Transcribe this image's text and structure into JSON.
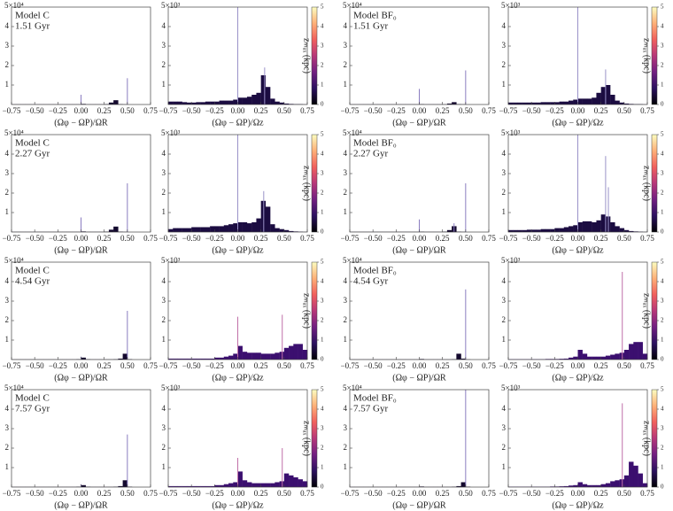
{
  "shared": {
    "bins": [
      -0.75,
      -0.7,
      -0.65,
      -0.6,
      -0.55,
      -0.5,
      -0.45,
      -0.4,
      -0.35,
      -0.3,
      -0.25,
      -0.2,
      -0.15,
      -0.1,
      -0.05,
      0,
      0.05,
      0.1,
      0.15,
      0.2,
      0.25,
      0.3,
      0.35,
      0.4,
      0.45,
      0.5,
      0.55,
      0.6,
      0.65,
      0.7,
      0.75
    ],
    "xlim": [
      -0.75,
      0.75
    ],
    "xticks": [
      {
        "value": -0.75,
        "label": "−0.75"
      },
      {
        "value": -0.5,
        "label": "−0.50"
      },
      {
        "value": -0.25,
        "label": "−0.25"
      },
      {
        "value": 0,
        "label": "0.00"
      },
      {
        "value": 0.25,
        "label": "0.25"
      },
      {
        "value": 0.5,
        "label": "0.50"
      },
      {
        "value": 0.75,
        "label": "0.75"
      }
    ],
    "ylim": [
      0,
      5
    ],
    "yticks": [
      1,
      2,
      3,
      4
    ],
    "colorbar": {
      "label": "zₘₐₓ (kpc)",
      "lim": [
        0,
        5
      ],
      "ticks": [
        0,
        1,
        2,
        3,
        4,
        5
      ],
      "colors": [
        "#000004",
        "#2c115f",
        "#721f81",
        "#b73779",
        "#f1605d",
        "#feb078",
        "#fcfdbf"
      ]
    }
  },
  "chart_data": [
    {
      "type": "histogram",
      "title": "Model C",
      "subtitle": "1.51 Gyr",
      "offset_label": "5×10⁴",
      "xlabel": "(Ωφ − ΩP)/ΩR",
      "color": "#14092e",
      "colorbar": false,
      "values": [
        0.01,
        0.01,
        0.01,
        0.01,
        0.01,
        0.01,
        0.01,
        0.01,
        0.01,
        0.01,
        0.01,
        0.01,
        0.01,
        0.01,
        0.01,
        0.03,
        0.01,
        0.01,
        0.01,
        0.01,
        0.02,
        0.1,
        0.22,
        0.02,
        0.01,
        0,
        0,
        0,
        0,
        0
      ],
      "spikes": {
        "x": [
          0,
          0.5
        ],
        "values": [
          0.5,
          1.35
        ],
        "color": "#8a7cc0"
      }
    },
    {
      "type": "histogram",
      "offset_label": "5×10³",
      "xlabel": "(Ωφ − ΩP)/Ωz",
      "color": "#1b0c41",
      "colorbar": true,
      "values": [
        0.15,
        0.15,
        0.15,
        0.12,
        0.1,
        0.1,
        0.12,
        0.12,
        0.15,
        0.15,
        0.15,
        0.2,
        0.2,
        0.2,
        0.25,
        0.35,
        0.35,
        0.4,
        0.5,
        0.6,
        1.5,
        0.9,
        0.3,
        0.15,
        0.1,
        0.05,
        0.03,
        0.02,
        0.02,
        0.01
      ],
      "spikes": {
        "x": [
          0,
          0.29
        ],
        "values": [
          5,
          1.9
        ],
        "color": "#9a92c8"
      }
    },
    {
      "type": "histogram",
      "title": "Model BF₀",
      "subtitle": "1.51 Gyr",
      "offset_label": "5×10⁴",
      "xlabel": "(Ωφ − ΩP)/ΩR",
      "color": "#14092e",
      "colorbar": false,
      "values": [
        0.01,
        0.01,
        0.01,
        0.01,
        0.01,
        0.01,
        0.01,
        0.01,
        0.01,
        0.01,
        0.01,
        0.01,
        0.01,
        0.01,
        0.01,
        0.02,
        0.01,
        0.01,
        0.01,
        0.01,
        0.01,
        0.05,
        0.12,
        0.02,
        0.01,
        0,
        0,
        0,
        0,
        0
      ],
      "spikes": {
        "x": [
          0,
          0.5
        ],
        "values": [
          0.8,
          1.75
        ],
        "color": "#8a7cc0"
      }
    },
    {
      "type": "histogram",
      "offset_label": "5×10³",
      "xlabel": "(Ωφ − ΩP)/Ωz",
      "color": "#1b0c41",
      "colorbar": true,
      "values": [
        0.1,
        0.1,
        0.1,
        0.1,
        0.1,
        0.1,
        0.1,
        0.12,
        0.12,
        0.12,
        0.12,
        0.15,
        0.15,
        0.2,
        0.25,
        0.3,
        0.3,
        0.3,
        0.35,
        0.6,
        0.9,
        1.0,
        0.5,
        0.2,
        0.1,
        0.05,
        0.03,
        0.02,
        0.02,
        0.01
      ],
      "spikes": {
        "x": [
          0,
          0.3
        ],
        "values": [
          5,
          1.8
        ],
        "color": "#9a92c8"
      }
    },
    {
      "type": "histogram",
      "title": "Model C",
      "subtitle": "2.27 Gyr",
      "offset_label": "5×10⁴",
      "xlabel": "(Ωφ − ΩP)/ΩR",
      "color": "#14092e",
      "colorbar": false,
      "values": [
        0.01,
        0.01,
        0.01,
        0.01,
        0.01,
        0.01,
        0.01,
        0.01,
        0.01,
        0.01,
        0.01,
        0.01,
        0.01,
        0.01,
        0.01,
        0.03,
        0.01,
        0.01,
        0.01,
        0.01,
        0.02,
        0.12,
        0.28,
        0.02,
        0.01,
        0,
        0,
        0,
        0,
        0
      ],
      "spikes": {
        "x": [
          0,
          0.5
        ],
        "values": [
          0.75,
          2.5
        ],
        "color": "#8a7cc0"
      }
    },
    {
      "type": "histogram",
      "offset_label": "5×10³",
      "xlabel": "(Ωφ − ΩP)/Ωz",
      "color": "#1b0c41",
      "colorbar": true,
      "values": [
        0.15,
        0.2,
        0.2,
        0.2,
        0.2,
        0.25,
        0.25,
        0.25,
        0.25,
        0.3,
        0.3,
        0.3,
        0.35,
        0.4,
        0.45,
        0.5,
        0.5,
        0.45,
        0.5,
        0.7,
        1.6,
        1.3,
        0.4,
        0.2,
        0.15,
        0.1,
        0.05,
        0.03,
        0.02,
        0.01
      ],
      "spikes": {
        "x": [
          0,
          0.28
        ],
        "values": [
          5,
          2.1
        ],
        "color": "#9a92c8"
      }
    },
    {
      "type": "histogram",
      "title": "Model BF₀",
      "subtitle": "2.27 Gyr",
      "offset_label": "5×10⁴",
      "xlabel": "(Ωφ − ΩP)/ΩR",
      "color": "#14092e",
      "colorbar": false,
      "values": [
        0.01,
        0.01,
        0.01,
        0.01,
        0.01,
        0.01,
        0.01,
        0.01,
        0.01,
        0.01,
        0.01,
        0.01,
        0.01,
        0.01,
        0.01,
        0.02,
        0.01,
        0.01,
        0.01,
        0.01,
        0.02,
        0.1,
        0.3,
        0.02,
        0.01,
        0,
        0,
        0,
        0,
        0
      ],
      "spikes": {
        "x": [
          0,
          0.375,
          0.5
        ],
        "values": [
          0.65,
          0.45,
          2.5
        ],
        "color": "#8a7cc0"
      }
    },
    {
      "type": "histogram",
      "offset_label": "5×10³",
      "xlabel": "(Ωφ − ΩP)/Ωz",
      "color": "#1b0c41",
      "colorbar": true,
      "values": [
        0.1,
        0.1,
        0.1,
        0.1,
        0.12,
        0.12,
        0.12,
        0.15,
        0.15,
        0.15,
        0.2,
        0.2,
        0.25,
        0.3,
        0.35,
        0.5,
        0.55,
        0.55,
        0.5,
        0.6,
        0.9,
        0.8,
        0.5,
        0.3,
        0.2,
        0.1,
        0.05,
        0.03,
        0.02,
        0.01
      ],
      "spikes": {
        "x": [
          0,
          0.3,
          0.33
        ],
        "values": [
          5,
          3.9,
          2.3
        ],
        "color": "#9a92c8"
      }
    },
    {
      "type": "histogram",
      "title": "Model C",
      "subtitle": "4.54 Gyr",
      "offset_label": "5×10⁴",
      "xlabel": "(Ωφ − ΩP)/ΩR",
      "color": "#14092e",
      "colorbar": false,
      "values": [
        0.01,
        0.01,
        0.01,
        0.01,
        0.01,
        0.01,
        0.01,
        0.01,
        0.01,
        0.01,
        0.01,
        0.01,
        0.01,
        0.01,
        0.02,
        0.1,
        0.02,
        0.01,
        0.01,
        0.01,
        0.01,
        0.01,
        0.02,
        0.05,
        0.3,
        0.02,
        0,
        0,
        0,
        0
      ],
      "spikes": {
        "x": [
          0,
          0.5
        ],
        "values": [
          0.15,
          2.5
        ],
        "color": "#8a7cc0"
      }
    },
    {
      "type": "histogram",
      "offset_label": "5×10³",
      "xlabel": "(Ωφ − ΩP)/Ωz",
      "color": "#3b0f6f",
      "colorbar": true,
      "values": [
        0.05,
        0.05,
        0.05,
        0.05,
        0.05,
        0.05,
        0.05,
        0.05,
        0.05,
        0.05,
        0.1,
        0.1,
        0.15,
        0.2,
        0.3,
        0.7,
        0.4,
        0.35,
        0.35,
        0.35,
        0.3,
        0.3,
        0.3,
        0.35,
        0.4,
        0.6,
        0.7,
        0.8,
        0.8,
        0.5
      ],
      "spikes": {
        "x": [
          0,
          0.48
        ],
        "values": [
          2.2,
          2.3
        ],
        "color": "#c070a8"
      }
    },
    {
      "type": "histogram",
      "title": "Model BF₀",
      "subtitle": "4.54 Gyr",
      "offset_label": "5×10⁴",
      "xlabel": "(Ωφ − ΩP)/ΩR",
      "color": "#14092e",
      "colorbar": false,
      "values": [
        0.01,
        0.01,
        0.01,
        0.01,
        0.01,
        0.01,
        0.01,
        0.01,
        0.01,
        0.01,
        0.01,
        0.01,
        0.01,
        0.01,
        0.01,
        0.03,
        0.01,
        0.01,
        0.01,
        0.01,
        0.01,
        0.01,
        0.02,
        0.3,
        0.05,
        0.01,
        0,
        0,
        0,
        0
      ],
      "spikes": {
        "x": [
          0.5
        ],
        "values": [
          3.6
        ],
        "color": "#8a7cc0"
      }
    },
    {
      "type": "histogram",
      "offset_label": "5×10³",
      "xlabel": "(Ωφ − ΩP)/Ωz",
      "color": "#3b0f6f",
      "colorbar": true,
      "values": [
        0.02,
        0.02,
        0.02,
        0.02,
        0.02,
        0.02,
        0.02,
        0.02,
        0.03,
        0.03,
        0.03,
        0.04,
        0.05,
        0.1,
        0.15,
        0.5,
        0.3,
        0.15,
        0.15,
        0.15,
        0.15,
        0.2,
        0.25,
        0.3,
        0.35,
        0.5,
        0.8,
        0.9,
        0.9,
        0.3
      ],
      "spikes": {
        "x": [
          0.48
        ],
        "values": [
          4.5
        ],
        "color": "#c070a8"
      }
    },
    {
      "type": "histogram",
      "title": "Model C",
      "subtitle": "7.57 Gyr",
      "offset_label": "5×10⁴",
      "xlabel": "(Ωφ − ΩP)/ΩR",
      "color": "#14092e",
      "colorbar": false,
      "values": [
        0.01,
        0.01,
        0.01,
        0.01,
        0.01,
        0.01,
        0.01,
        0.01,
        0.01,
        0.01,
        0.01,
        0.01,
        0.01,
        0.01,
        0.02,
        0.1,
        0.02,
        0.01,
        0.01,
        0.01,
        0.01,
        0.01,
        0.02,
        0.05,
        0.35,
        0.02,
        0,
        0,
        0,
        0
      ],
      "spikes": {
        "x": [
          0,
          0.5
        ],
        "values": [
          0.15,
          2.7
        ],
        "color": "#8a7cc0"
      }
    },
    {
      "type": "histogram",
      "offset_label": "5×10³",
      "xlabel": "(Ωφ − ΩP)/Ωz",
      "color": "#3b0f6f",
      "colorbar": true,
      "values": [
        0.05,
        0.05,
        0.05,
        0.05,
        0.05,
        0.05,
        0.05,
        0.05,
        0.05,
        0.05,
        0.1,
        0.1,
        0.15,
        0.2,
        0.25,
        0.8,
        0.35,
        0.25,
        0.2,
        0.2,
        0.2,
        0.2,
        0.2,
        0.25,
        0.3,
        0.7,
        0.6,
        0.5,
        0.4,
        0.3
      ],
      "spikes": {
        "x": [
          0,
          0.48
        ],
        "values": [
          1.5,
          2.0
        ],
        "color": "#c070a8"
      }
    },
    {
      "type": "histogram",
      "title": "Model BF₀",
      "subtitle": "7.57 Gyr",
      "offset_label": "5×10⁴",
      "xlabel": "(Ωφ − ΩP)/ΩR",
      "color": "#14092e",
      "colorbar": false,
      "values": [
        0.01,
        0.01,
        0.01,
        0.01,
        0.01,
        0.01,
        0.01,
        0.01,
        0.01,
        0.01,
        0.01,
        0.01,
        0.01,
        0.01,
        0.01,
        0.03,
        0.01,
        0.01,
        0.01,
        0.01,
        0.01,
        0.01,
        0.02,
        0.05,
        0.25,
        0.02,
        0,
        0,
        0,
        0
      ],
      "spikes": {
        "x": [
          0.5
        ],
        "values": [
          5
        ],
        "color": "#8a7cc0"
      }
    },
    {
      "type": "histogram",
      "offset_label": "5×10³",
      "xlabel": "(Ωφ − ΩP)/Ωz",
      "color": "#3b0f6f",
      "colorbar": true,
      "values": [
        0.02,
        0.02,
        0.02,
        0.02,
        0.02,
        0.02,
        0.02,
        0.02,
        0.02,
        0.03,
        0.03,
        0.04,
        0.05,
        0.08,
        0.1,
        0.25,
        0.15,
        0.1,
        0.1,
        0.1,
        0.15,
        0.2,
        0.3,
        0.35,
        0.4,
        0.6,
        1.3,
        1.1,
        0.7,
        0.2
      ],
      "spikes": {
        "x": [
          0.48
        ],
        "values": [
          4.3
        ],
        "color": "#c070a8"
      }
    }
  ]
}
